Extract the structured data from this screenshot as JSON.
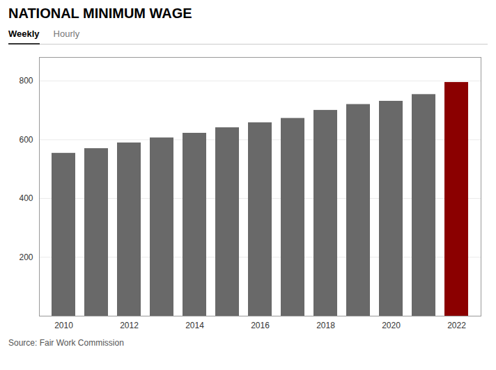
{
  "chart_data": {
    "type": "bar",
    "title": "NATIONAL MINIMUM WAGE",
    "annotations": [
      "Weekly",
      "Hourly"
    ],
    "caption": "Source: Fair Work Commission",
    "categories": [
      "2010",
      null,
      "2012",
      null,
      "2014",
      null,
      "2016",
      null,
      "2018",
      null,
      "2020",
      null,
      "2022"
    ],
    "values": [
      554.0,
      569.9,
      589.3,
      606.4,
      622.2,
      640.9,
      657.9,
      672.7,
      700.0,
      720.0,
      731.0,
      753.8,
      795.0
    ],
    "colors": [
      "#696969",
      "#696969",
      "#696969",
      "#696969",
      "#696969",
      "#696969",
      "#696969",
      "#696969",
      "#696969",
      "#696969",
      "#696969",
      "#696969",
      "#8b0000"
    ],
    "ylim": [
      0,
      880
    ],
    "yticks": [
      200,
      400,
      600,
      800
    ],
    "grid": true
  }
}
